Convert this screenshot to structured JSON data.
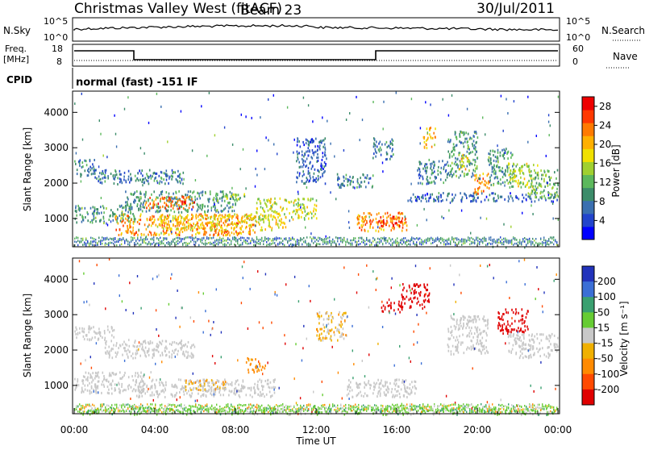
{
  "header": {
    "station": "Christmas Valley West (fitACF)",
    "beam": "Beam 23",
    "date": "30/Jul/2011"
  },
  "panels": {
    "nsky": {
      "label": "N.Sky",
      "ticks": [
        "10^5",
        "10^0"
      ]
    },
    "nsearch": {
      "label": "N.Search",
      "ticks": [
        "10^5",
        "10^0"
      ]
    },
    "freq": {
      "label_line1": "Freq.",
      "label_line2": "[MHz]",
      "ticks": [
        "18",
        "8"
      ]
    },
    "nave": {
      "label": "Nave",
      "ticks": [
        "60",
        "0"
      ]
    },
    "cpid": {
      "label": "CPID",
      "text": "normal (fast) -151 IF"
    }
  },
  "chart_data": [
    {
      "type": "heatmap",
      "title": "",
      "xlabel": "",
      "ylabel": "Slant Range [km]",
      "xlim": [
        0,
        24
      ],
      "ylim": [
        200,
        4600
      ],
      "yticks": [
        1000,
        2000,
        3000,
        4000
      ],
      "colorbar": {
        "label": "Power [dB]",
        "ticks": [
          4,
          8,
          12,
          16,
          20,
          24,
          28
        ],
        "range": [
          0,
          30
        ],
        "colors": [
          "#0000ff",
          "#2244cc",
          "#3a6fb0",
          "#3c8c6a",
          "#5cb85c",
          "#a0d030",
          "#f0e000",
          "#ffb000",
          "#ff7a00",
          "#ff3800",
          "#ee0000"
        ]
      },
      "regions": [
        {
          "t": [
            0.0,
            1.0
          ],
          "range": [
            2200,
            2700
          ],
          "value": 8
        },
        {
          "t": [
            0.0,
            3.0
          ],
          "range": [
            900,
            1400
          ],
          "value": 10
        },
        {
          "t": [
            1.0,
            5.5
          ],
          "range": [
            2000,
            2400
          ],
          "value": 8
        },
        {
          "t": [
            2.5,
            8.0
          ],
          "range": [
            1200,
            1800
          ],
          "value": 10
        },
        {
          "t": [
            2.0,
            9.0
          ],
          "range": [
            550,
            1150
          ],
          "value": 22
        },
        {
          "t": [
            3.5,
            6.0
          ],
          "range": [
            1300,
            1650
          ],
          "value": 24
        },
        {
          "t": [
            4.0,
            10.5
          ],
          "range": [
            700,
            1150
          ],
          "value": 18
        },
        {
          "t": [
            7.0,
            8.5
          ],
          "range": [
            1500,
            1750
          ],
          "value": 14
        },
        {
          "t": [
            9.0,
            12.0
          ],
          "range": [
            1000,
            1600
          ],
          "value": 16
        },
        {
          "t": [
            11.0,
            12.5
          ],
          "range": [
            2000,
            3300
          ],
          "value": 6
        },
        {
          "t": [
            13.0,
            14.8
          ],
          "range": [
            1900,
            2300
          ],
          "value": 8
        },
        {
          "t": [
            14.0,
            16.5
          ],
          "range": [
            650,
            1200
          ],
          "value": 22
        },
        {
          "t": [
            15.0,
            16.3
          ],
          "range": [
            800,
            1100
          ],
          "value": 27
        },
        {
          "t": [
            14.8,
            15.8
          ],
          "range": [
            2700,
            3300
          ],
          "value": 8
        },
        {
          "t": [
            17.3,
            17.9
          ],
          "range": [
            3000,
            3600
          ],
          "value": 20
        },
        {
          "t": [
            17.0,
            18.5
          ],
          "range": [
            2000,
            2700
          ],
          "value": 8
        },
        {
          "t": [
            18.5,
            20.0
          ],
          "range": [
            2200,
            3500
          ],
          "value": 10
        },
        {
          "t": [
            19.0,
            19.6
          ],
          "range": [
            2400,
            2900
          ],
          "value": 18
        },
        {
          "t": [
            19.8,
            20.6
          ],
          "range": [
            1700,
            2300
          ],
          "value": 22
        },
        {
          "t": [
            20.5,
            21.8
          ],
          "range": [
            1900,
            3000
          ],
          "value": 10
        },
        {
          "t": [
            21.5,
            23.0
          ],
          "range": [
            1900,
            2600
          ],
          "value": 16
        },
        {
          "t": [
            16.5,
            24.0
          ],
          "range": [
            1500,
            1750
          ],
          "value": 6
        },
        {
          "t": [
            22.5,
            24.0
          ],
          "range": [
            1600,
            2400
          ],
          "value": 12
        }
      ]
    },
    {
      "type": "heatmap",
      "title": "",
      "xlabel": "Time UT",
      "ylabel": "Slant Range [km]",
      "xlim": [
        0,
        24
      ],
      "ylim": [
        200,
        4600
      ],
      "xticks": [
        "00:00",
        "04:00",
        "08:00",
        "12:00",
        "16:00",
        "20:00",
        "00:00"
      ],
      "yticks": [
        1000,
        2000,
        3000,
        4000
      ],
      "colorbar": {
        "label": "Velocity [m s⁻¹]",
        "ticks": [
          200,
          100,
          50,
          15,
          -15,
          -50,
          -100,
          -200
        ],
        "colors": [
          "#2233bb",
          "#3b6fd6",
          "#3aa070",
          "#66cc33",
          "#c8c8c8",
          "#f0b000",
          "#ff8a00",
          "#ff4a00",
          "#e00000"
        ]
      },
      "regions": [
        {
          "t": [
            0.0,
            2.0
          ],
          "range": [
            2300,
            2700
          ],
          "value": 0
        },
        {
          "t": [
            0.0,
            3.5
          ],
          "range": [
            800,
            1400
          ],
          "value": 0
        },
        {
          "t": [
            1.5,
            6.0
          ],
          "range": [
            1800,
            2300
          ],
          "value": 0
        },
        {
          "t": [
            3.0,
            10.0
          ],
          "range": [
            700,
            1200
          ],
          "value": 0
        },
        {
          "t": [
            5.5,
            7.5
          ],
          "range": [
            900,
            1200
          ],
          "value": -20
        },
        {
          "t": [
            8.5,
            9.5
          ],
          "range": [
            1400,
            1800
          ],
          "value": -40
        },
        {
          "t": [
            13.5,
            17.0
          ],
          "range": [
            700,
            1200
          ],
          "value": 0
        },
        {
          "t": [
            12.0,
            13.5
          ],
          "range": [
            2300,
            3100
          ],
          "value": -20
        },
        {
          "t": [
            15.2,
            16.3
          ],
          "range": [
            3100,
            3400
          ],
          "value": -200
        },
        {
          "t": [
            16.2,
            17.6
          ],
          "range": [
            3200,
            3900
          ],
          "value": -200
        },
        {
          "t": [
            18.5,
            20.5
          ],
          "range": [
            1900,
            3000
          ],
          "value": 0
        },
        {
          "t": [
            21.0,
            22.5
          ],
          "range": [
            2500,
            3200
          ],
          "value": -200
        },
        {
          "t": [
            21.5,
            24.0
          ],
          "range": [
            1800,
            2500
          ],
          "value": 0
        },
        {
          "t": [
            0.0,
            24.0
          ],
          "range": [
            200,
            400
          ],
          "value": 20
        }
      ]
    }
  ]
}
